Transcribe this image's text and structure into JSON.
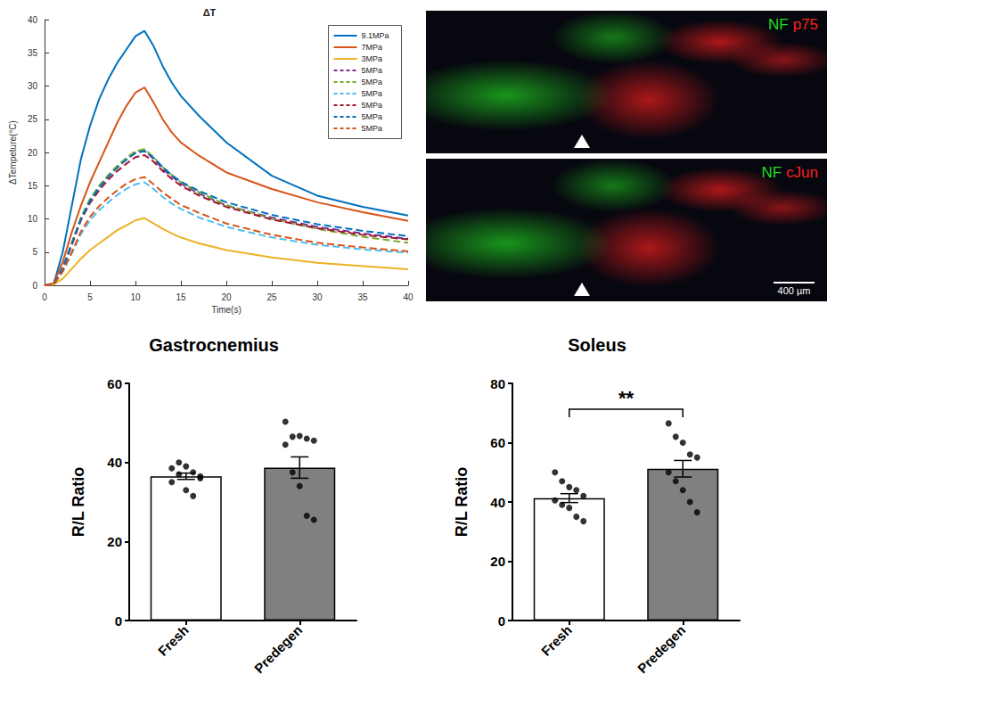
{
  "chart_data": [
    {
      "type": "line",
      "title": "ΔT",
      "x_label": "Time(s)",
      "y_label": "ΔTempeture(°C)",
      "x": [
        0,
        1,
        2,
        3,
        4,
        5,
        6,
        7,
        8,
        9,
        10,
        11,
        12,
        13,
        14,
        15,
        17,
        20,
        25,
        30,
        35,
        40
      ],
      "xlim": [
        0,
        40
      ],
      "xticks": [
        0,
        5,
        10,
        15,
        20,
        25,
        30,
        35,
        40
      ],
      "ylim": [
        0,
        40
      ],
      "yticks": [
        0,
        5,
        10,
        15,
        20,
        25,
        30,
        35,
        40
      ],
      "grid": false,
      "legend": "upper right",
      "series": [
        {
          "name": "9.1MPa",
          "color": "#0072bd",
          "line_style": "solid",
          "values": [
            0,
            0.2,
            5,
            12,
            19,
            24,
            28,
            31,
            33.5,
            35.5,
            37.5,
            38.3,
            36,
            33,
            30.5,
            28.5,
            25.5,
            21.5,
            16.5,
            13.5,
            11.8,
            10.5
          ]
        },
        {
          "name": "7MPa",
          "color": "#d95319",
          "line_style": "solid",
          "values": [
            0,
            0.3,
            3.5,
            8,
            12,
            15.5,
            18.5,
            21.5,
            24.5,
            27,
            29,
            29.8,
            27.5,
            25,
            23,
            21.5,
            19.5,
            17,
            14.5,
            12.5,
            11,
            9.7
          ]
        },
        {
          "name": "3MPa",
          "color": "#edb120",
          "line_style": "solid",
          "values": [
            0,
            0.1,
            1,
            2.5,
            4,
            5.3,
            6.3,
            7.3,
            8.3,
            9,
            9.8,
            10.1,
            9.3,
            8.5,
            7.8,
            7.2,
            6.3,
            5.3,
            4.2,
            3.4,
            2.9,
            2.4
          ]
        },
        {
          "name": "5MPa",
          "color": "#7e2f8e",
          "line_style": "dashed",
          "values": [
            0,
            0.1,
            2.6,
            6.3,
            10,
            12.8,
            14.8,
            16.4,
            17.8,
            19,
            20,
            20.3,
            19,
            17.5,
            16.4,
            15.3,
            13.8,
            12,
            10.2,
            8.8,
            7.8,
            7.0
          ]
        },
        {
          "name": "5MPa",
          "color": "#77ac30",
          "line_style": "dashed",
          "values": [
            0,
            0.1,
            2.7,
            6.4,
            10.2,
            13,
            15,
            16.6,
            18,
            19.2,
            20.2,
            20.5,
            19.3,
            17.8,
            16.6,
            15.5,
            14,
            12.1,
            10,
            8.5,
            7.3,
            6.4
          ]
        },
        {
          "name": "5MPa",
          "color": "#4dbeee",
          "line_style": "dashed",
          "values": [
            0,
            0.1,
            2,
            4.8,
            7.7,
            9.8,
            11.3,
            12.5,
            13.6,
            14.5,
            15.2,
            15.5,
            14.5,
            13.3,
            12.3,
            11.5,
            10.2,
            8.8,
            7.2,
            6.1,
            5.4,
            4.9
          ]
        },
        {
          "name": "5MPa",
          "color": "#a2142f",
          "line_style": "dashed",
          "values": [
            0,
            0.1,
            2.5,
            6.1,
            9.8,
            12.4,
            14.3,
            15.9,
            17.2,
            18.3,
            19.3,
            19.6,
            18.6,
            17.2,
            16,
            15,
            13.5,
            11.8,
            9.9,
            8.6,
            7.6,
            6.9
          ]
        },
        {
          "name": "5MPa",
          "color": "#0072bd",
          "line_style": "dashed",
          "values": [
            0,
            0.1,
            2.6,
            6.3,
            10,
            12.7,
            14.7,
            16.3,
            17.7,
            18.9,
            19.9,
            20.2,
            19.2,
            17.8,
            16.6,
            15.6,
            14.2,
            12.5,
            10.6,
            9.2,
            8.2,
            7.4
          ]
        },
        {
          "name": "5MPa",
          "color": "#d95319",
          "line_style": "dashed",
          "values": [
            0,
            0.1,
            2.1,
            5,
            8.1,
            10.3,
            11.9,
            13.2,
            14.3,
            15.3,
            16,
            16.3,
            15.2,
            14,
            13,
            12.1,
            10.9,
            9.3,
            7.6,
            6.4,
            5.7,
            5.1
          ]
        }
      ]
    },
    {
      "type": "bar",
      "title": "Gastrocnemius",
      "y_label": "R/L Ratio",
      "categories": [
        "Fresh",
        "Predegen"
      ],
      "values": [
        36.5,
        38.7
      ],
      "sem": [
        0.8,
        2.7
      ],
      "colors": [
        "#ffffff",
        "#808080"
      ],
      "points": [
        [
          38.5,
          40,
          39,
          37.5,
          36,
          35,
          37,
          33,
          31.5,
          36.5
        ],
        [
          50.3,
          46.5,
          46.7,
          46,
          45.5,
          44.5,
          37.5,
          34,
          26.5,
          25.5
        ]
      ],
      "ylim": [
        0,
        60
      ],
      "yticks": [
        0,
        20,
        40,
        60
      ],
      "grid": false
    },
    {
      "type": "bar",
      "title": "Soleus",
      "y_label": "R/L Ratio",
      "categories": [
        "Fresh",
        "Predegen"
      ],
      "values": [
        41.3,
        51.2
      ],
      "sem": [
        1.5,
        2.8
      ],
      "colors": [
        "#ffffff",
        "#808080"
      ],
      "points": [
        [
          50,
          47,
          45,
          44,
          42,
          40.5,
          39,
          38,
          35,
          33.5
        ],
        [
          66.5,
          62,
          60,
          56,
          55,
          50,
          47,
          44,
          40,
          36.5
        ]
      ],
      "ylim": [
        0,
        80
      ],
      "yticks": [
        0,
        20,
        40,
        60,
        80
      ],
      "grid": false,
      "annotations": [
        {
          "text": "**",
          "between": [
            "Fresh",
            "Predegen"
          ]
        }
      ]
    }
  ],
  "image_panels": [
    {
      "labels": [
        {
          "text": "NF",
          "color": "#22dd22"
        },
        {
          "text": "p75",
          "color": "#ff2020"
        }
      ]
    },
    {
      "labels": [
        {
          "text": "NF",
          "color": "#22dd22"
        },
        {
          "text": "cJun",
          "color": "#ff2020"
        }
      ],
      "scale_bar": "400 µm"
    }
  ]
}
